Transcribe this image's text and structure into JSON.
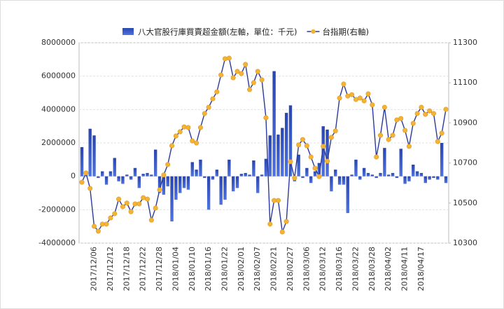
{
  "chart_data": {
    "type": "bar_line",
    "categories": [
      null,
      null,
      null,
      "2017/12/06",
      null,
      null,
      null,
      "2017/12/12",
      null,
      null,
      null,
      "2017/12/18",
      null,
      null,
      null,
      "2017/12/22",
      null,
      null,
      null,
      "2017/12/28",
      null,
      null,
      null,
      "2018/01/04",
      null,
      null,
      null,
      "2018/01/10",
      null,
      null,
      null,
      "2018/01/16",
      null,
      null,
      null,
      "2018/01/22",
      null,
      null,
      null,
      "2018/02/01",
      null,
      null,
      null,
      "2018/02/07",
      null,
      null,
      null,
      "2018/02/21",
      null,
      null,
      null,
      "2018/02/27",
      null,
      null,
      null,
      "2018/03/06",
      null,
      null,
      null,
      "2018/03/12",
      null,
      null,
      null,
      "2018/03/16",
      null,
      null,
      null,
      "2018/03/22",
      null,
      null,
      null,
      "2018/03/28",
      null,
      null,
      null,
      "2018/04/02",
      null,
      null,
      null,
      "2018/04/11",
      null,
      null,
      null,
      "2018/04/17",
      null,
      null,
      null,
      null,
      null,
      null
    ],
    "series": [
      {
        "name": "八大官股行庫買賣超金額(左軸，單位：千元)",
        "kind": "bar",
        "axis": "y",
        "color": "#2a45ad",
        "values": [
          1750000,
          300000,
          2850000,
          2450000,
          -100000,
          300000,
          -500000,
          300000,
          1100000,
          -300000,
          -450000,
          100000,
          -200000,
          500000,
          -700000,
          150000,
          200000,
          100000,
          1600000,
          -1000000,
          -1100000,
          -600000,
          -2700000,
          -1400000,
          -1000000,
          -700000,
          -800000,
          850000,
          400000,
          1000000,
          -100000,
          -2000000,
          -200000,
          400000,
          -1700000,
          -1400000,
          1000000,
          -900000,
          -700000,
          150000,
          200000,
          100000,
          950000,
          -1000000,
          100000,
          1050000,
          2450000,
          6300000,
          2500000,
          2900000,
          3800000,
          4250000,
          -300000,
          1300000,
          -100000,
          500000,
          -400000,
          300000,
          800000,
          3000000,
          2800000,
          -900000,
          400000,
          -500000,
          -500000,
          -2200000,
          100000,
          1000000,
          -200000,
          500000,
          200000,
          100000,
          -100000,
          200000,
          1700000,
          100000,
          200000,
          -100000,
          1650000,
          -450000,
          -300000,
          700000,
          300000,
          200000,
          -400000,
          -200000,
          -100000,
          -200000,
          2000000,
          -400000
        ]
      },
      {
        "name": "台指期(右軸)",
        "kind": "line",
        "axis": "y2",
        "color": "#2b3a9a",
        "marker_color": "#f5b335",
        "values": [
          10604,
          10650,
          10573,
          10384,
          10360,
          10395,
          10395,
          10426,
          10447,
          10520,
          10482,
          10500,
          10457,
          10496,
          10496,
          10527,
          10520,
          10415,
          10475,
          10566,
          10640,
          10692,
          10786,
          10835,
          10856,
          10880,
          10877,
          10810,
          10800,
          10877,
          10947,
          10978,
          11020,
          11055,
          11139,
          11220,
          11223,
          11125,
          11157,
          11146,
          11192,
          11066,
          11101,
          11157,
          11115,
          10926,
          10395,
          10513,
          10513,
          10356,
          10408,
          10706,
          10625,
          10790,
          10817,
          10786,
          10730,
          10674,
          10632,
          10783,
          10709,
          10828,
          10860,
          11024,
          11094,
          11034,
          11041,
          11017,
          11024,
          11010,
          11045,
          10990,
          10730,
          10838,
          10978,
          10817,
          10838,
          10915,
          10922,
          10863,
          10783,
          10898,
          10947,
          10978,
          10943,
          10960,
          10947,
          10807,
          10849,
          10968
        ]
      }
    ],
    "ylim": [
      -4000000,
      8000000
    ],
    "yticks": [
      -4000000,
      -2000000,
      0,
      2000000,
      4000000,
      6000000,
      8000000
    ],
    "y2lim": [
      10300,
      11300
    ],
    "y2ticks": [
      10300,
      10500,
      10700,
      10900,
      11100,
      11300
    ],
    "grid": true
  }
}
